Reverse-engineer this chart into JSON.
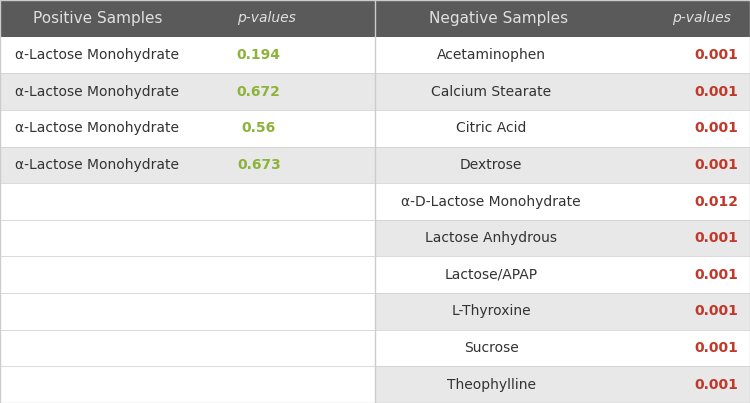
{
  "header_bg": "#5a5a5a",
  "header_text_color": "#e0e0e0",
  "header_left_col1": "Positive Samples",
  "header_left_col2": "p-values",
  "header_right_col1": "Negative Samples",
  "header_right_col2": "p-values",
  "positive_samples": [
    {
      "name": "α-Lactose Monohydrate",
      "pvalue": "0.194"
    },
    {
      "name": "α-Lactose Monohydrate",
      "pvalue": "0.672"
    },
    {
      "name": "α-Lactose Monohydrate",
      "pvalue": "0.56"
    },
    {
      "name": "α-Lactose Monohydrate",
      "pvalue": "0.673"
    }
  ],
  "negative_samples": [
    {
      "name": "Acetaminophen",
      "pvalue": "0.001"
    },
    {
      "name": "Calcium Stearate",
      "pvalue": "0.001"
    },
    {
      "name": "Citric Acid",
      "pvalue": "0.001"
    },
    {
      "name": "Dextrose",
      "pvalue": "0.001"
    },
    {
      "name": "α-D-Lactose Monohydrate",
      "pvalue": "0.012"
    },
    {
      "name": "Lactose Anhydrous",
      "pvalue": "0.001"
    },
    {
      "name": "Lactose/APAP",
      "pvalue": "0.001"
    },
    {
      "name": "L-Thyroxine",
      "pvalue": "0.001"
    },
    {
      "name": "Sucrose",
      "pvalue": "0.001"
    },
    {
      "name": "Theophylline",
      "pvalue": "0.001"
    }
  ],
  "pvalue_pass_color": "#8db33a",
  "pvalue_fail_color": "#c0392b",
  "row_color_light": "#ffffff",
  "row_color_dark": "#e8e8e8",
  "divider_color": "#cccccc",
  "text_color_dark": "#333333",
  "figsize": [
    7.5,
    4.03
  ],
  "dpi": 100
}
